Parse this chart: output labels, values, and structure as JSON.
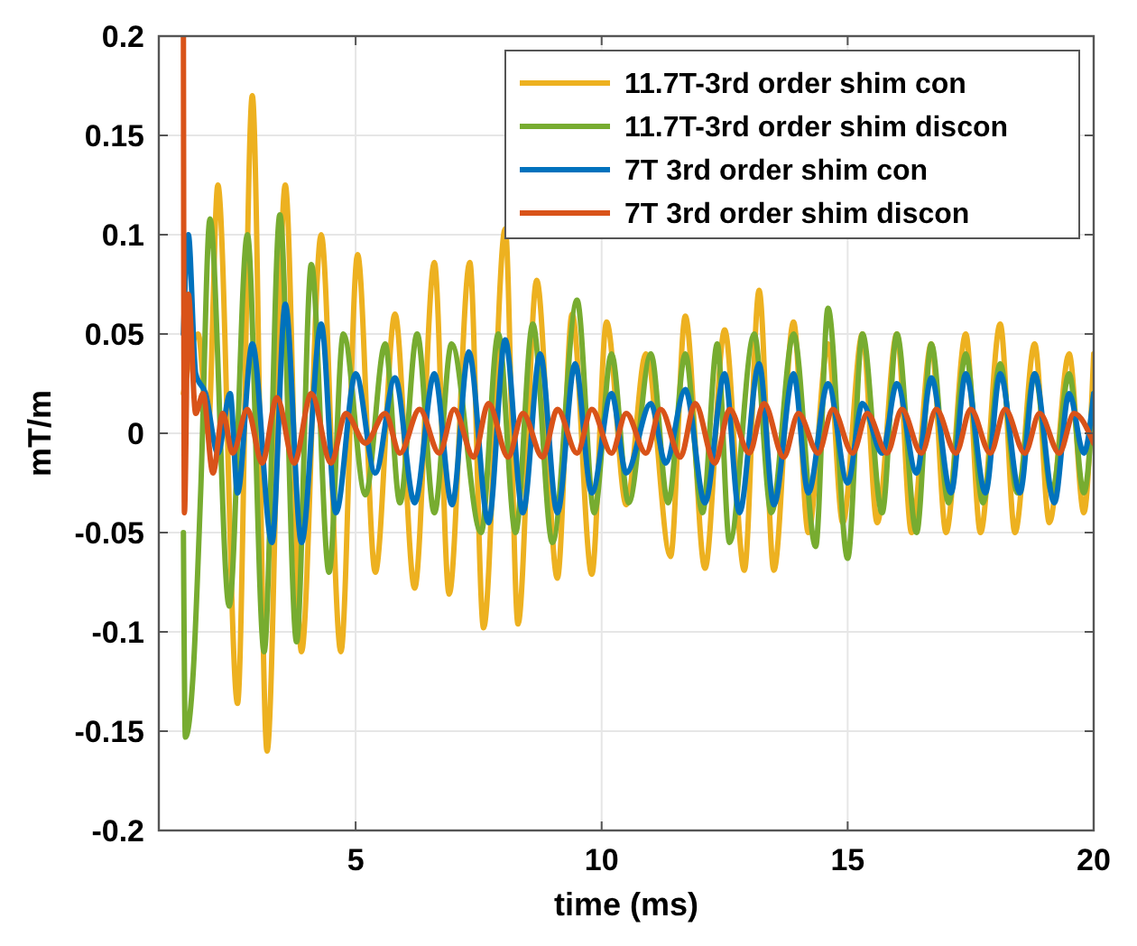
{
  "chart_data": {
    "type": "line",
    "xlabel": "time (ms)",
    "ylabel": "mT/m",
    "xlim": [
      1,
      20
    ],
    "xticks": [
      5,
      10,
      15,
      20
    ],
    "ylim": [
      -0.2,
      0.2
    ],
    "yticks": [
      -0.2,
      -0.15,
      -0.1,
      -0.05,
      0,
      0.05,
      0.1,
      0.15,
      0.2
    ],
    "grid": true,
    "legend": "top right",
    "line_style": "solid",
    "marker": "none",
    "series": [
      {
        "name": "11.7T-3rd order shim con",
        "color": "#edb120",
        "x": [
          1.5,
          1.8,
          2.0,
          2.2,
          2.6,
          2.9,
          3.2,
          3.57,
          3.9,
          4.3,
          4.7,
          5.04,
          5.4,
          5.8,
          6.2,
          6.6,
          6.9,
          7.32,
          7.6,
          8.04,
          8.3,
          8.68,
          9.1,
          9.4,
          9.8,
          10.1,
          10.5,
          10.9,
          11.4,
          11.7,
          12.1,
          12.5,
          12.9,
          13.2,
          13.5,
          13.9,
          14.2,
          14.6,
          14.9,
          15.3,
          15.6,
          16.0,
          16.3,
          16.7,
          17.0,
          17.4,
          17.7,
          18.1,
          18.4,
          18.8,
          19.1,
          19.5,
          19.8,
          20
        ],
        "values": [
          0.02,
          0.05,
          0.0,
          0.125,
          -0.136,
          0.17,
          -0.16,
          0.125,
          -0.11,
          0.1,
          -0.11,
          0.09,
          -0.07,
          0.06,
          -0.078,
          0.086,
          -0.081,
          0.086,
          -0.098,
          0.103,
          -0.096,
          0.077,
          -0.073,
          0.06,
          -0.071,
          0.056,
          -0.036,
          0.04,
          -0.062,
          0.059,
          -0.068,
          0.052,
          -0.069,
          0.072,
          -0.069,
          0.056,
          -0.05,
          0.045,
          -0.045,
          0.05,
          -0.045,
          0.05,
          -0.05,
          0.045,
          -0.05,
          0.05,
          -0.05,
          0.055,
          -0.05,
          0.045,
          -0.045,
          0.04,
          -0.04,
          0.04
        ]
      },
      {
        "name": "11.7T-3rd order shim discon",
        "color": "#77ac30",
        "x": [
          1.5,
          1.54,
          1.7,
          1.85,
          2.04,
          2.43,
          2.8,
          3.14,
          3.46,
          3.8,
          4.1,
          4.46,
          4.75,
          5.2,
          5.6,
          5.9,
          6.25,
          6.6,
          6.95,
          7.55,
          7.9,
          8.25,
          8.6,
          9.0,
          9.5,
          9.85,
          10.2,
          10.55,
          11.0,
          11.35,
          11.7,
          12.05,
          12.35,
          12.6,
          13.1,
          13.45,
          13.9,
          14.35,
          14.6,
          15.0,
          15.3,
          15.7,
          16.0,
          16.4,
          16.7,
          17.05,
          17.4,
          17.75,
          18.1,
          18.45,
          18.8,
          19.15,
          19.5,
          19.8,
          20
        ],
        "values": [
          -0.05,
          -0.153,
          -0.12,
          -0.03,
          0.108,
          -0.087,
          0.1,
          -0.11,
          0.11,
          -0.105,
          0.085,
          -0.07,
          0.05,
          -0.031,
          0.045,
          -0.035,
          0.05,
          -0.04,
          0.045,
          -0.05,
          0.05,
          -0.05,
          0.055,
          -0.055,
          0.067,
          -0.04,
          0.04,
          -0.035,
          0.04,
          -0.035,
          0.04,
          -0.04,
          0.045,
          -0.055,
          0.05,
          -0.04,
          0.05,
          -0.057,
          0.063,
          -0.063,
          0.05,
          -0.04,
          0.05,
          -0.05,
          0.045,
          -0.035,
          0.04,
          -0.035,
          0.035,
          -0.03,
          0.03,
          -0.03,
          0.03,
          -0.03,
          0.02
        ]
      },
      {
        "name": "7T 3rd order shim con",
        "color": "#0072bd",
        "x": [
          1.5,
          1.6,
          1.75,
          1.95,
          2.2,
          2.45,
          2.6,
          2.9,
          3.3,
          3.57,
          3.9,
          4.3,
          4.6,
          5.0,
          5.4,
          5.8,
          6.2,
          6.6,
          6.96,
          7.3,
          7.7,
          8.04,
          8.4,
          8.75,
          9.1,
          9.46,
          9.8,
          10.2,
          10.5,
          11.0,
          11.3,
          11.7,
          12.1,
          12.5,
          12.8,
          13.2,
          13.5,
          13.9,
          14.2,
          14.6,
          15.0,
          15.3,
          15.7,
          16.0,
          16.4,
          16.7,
          17.1,
          17.4,
          17.8,
          18.1,
          18.5,
          18.8,
          19.2,
          19.5,
          19.8,
          20
        ],
        "values": [
          0.05,
          0.1,
          0.03,
          0.02,
          -0.01,
          0.02,
          -0.03,
          0.045,
          -0.055,
          0.065,
          -0.055,
          0.055,
          -0.04,
          0.03,
          -0.02,
          0.028,
          -0.035,
          0.03,
          -0.036,
          0.041,
          -0.045,
          0.047,
          -0.04,
          0.04,
          -0.04,
          0.035,
          -0.03,
          0.02,
          -0.02,
          0.015,
          -0.015,
          0.022,
          -0.035,
          0.03,
          -0.04,
          0.035,
          -0.036,
          0.03,
          -0.03,
          0.025,
          -0.025,
          0.015,
          -0.01,
          0.025,
          -0.02,
          0.028,
          -0.03,
          0.03,
          -0.03,
          0.03,
          -0.03,
          0.03,
          -0.035,
          0.02,
          -0.01,
          0.02
        ]
      },
      {
        "name": "7T 3rd order shim discon",
        "color": "#d95319",
        "x": [
          1.5,
          1.52,
          1.6,
          1.75,
          1.9,
          2.1,
          2.3,
          2.5,
          2.8,
          3.1,
          3.4,
          3.75,
          4.1,
          4.5,
          4.8,
          5.2,
          5.6,
          5.9,
          6.3,
          6.7,
          7.0,
          7.4,
          7.7,
          8.1,
          8.4,
          8.8,
          9.1,
          9.5,
          9.8,
          10.2,
          10.5,
          10.9,
          11.2,
          11.6,
          11.9,
          12.3,
          12.6,
          13.0,
          13.3,
          13.7,
          14.0,
          14.4,
          14.7,
          15.1,
          15.4,
          15.8,
          16.1,
          16.5,
          16.8,
          17.2,
          17.5,
          17.9,
          18.2,
          18.6,
          18.9,
          19.3,
          19.6,
          20
        ],
        "values": [
          0.2,
          -0.04,
          0.07,
          0.01,
          0.02,
          -0.02,
          0.01,
          -0.01,
          0.012,
          -0.015,
          0.018,
          -0.015,
          0.02,
          -0.015,
          0.01,
          -0.005,
          0.01,
          -0.01,
          0.012,
          -0.01,
          0.012,
          -0.012,
          0.015,
          -0.012,
          0.01,
          -0.012,
          0.012,
          -0.01,
          0.012,
          -0.01,
          0.01,
          -0.01,
          0.012,
          -0.012,
          0.015,
          -0.015,
          0.012,
          -0.01,
          0.015,
          -0.012,
          0.01,
          -0.01,
          0.012,
          -0.01,
          0.01,
          -0.01,
          0.012,
          -0.01,
          0.012,
          -0.01,
          0.012,
          -0.01,
          0.012,
          -0.01,
          0.01,
          -0.01,
          0.01,
          -0.005
        ]
      }
    ]
  }
}
